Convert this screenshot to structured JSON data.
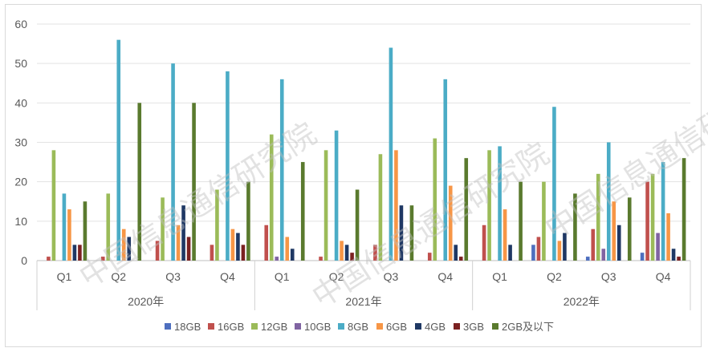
{
  "chart_data": {
    "type": "bar",
    "ylim": [
      0,
      60
    ],
    "yticks": [
      0,
      10,
      20,
      30,
      40,
      50,
      60
    ],
    "grid": true,
    "legend_position": "bottom",
    "quarters": [
      "Q1",
      "Q2",
      "Q3",
      "Q4"
    ],
    "years": [
      "2020年",
      "2021年",
      "2022年"
    ],
    "categories": [
      "2020年 Q1",
      "2020年 Q2",
      "2020年 Q3",
      "2020年 Q4",
      "2021年 Q1",
      "2021年 Q2",
      "2021年 Q3",
      "2021年 Q4",
      "2022年 Q1",
      "2022年 Q2",
      "2022年 Q3",
      "2022年 Q4"
    ],
    "series": [
      {
        "name": "18GB",
        "color": "#4e6fbf",
        "values": [
          0,
          0,
          0,
          0,
          0,
          0,
          0,
          0,
          0,
          4,
          1,
          2
        ]
      },
      {
        "name": "16GB",
        "color": "#c0504d",
        "values": [
          1,
          1,
          5,
          4,
          9,
          1,
          4,
          2,
          9,
          6,
          8,
          20
        ]
      },
      {
        "name": "12GB",
        "color": "#9bbb59",
        "values": [
          28,
          17,
          16,
          18,
          32,
          28,
          27,
          31,
          28,
          20,
          22,
          22
        ]
      },
      {
        "name": "10GB",
        "color": "#8064a2",
        "values": [
          0,
          0,
          0,
          0,
          1,
          0,
          0,
          0,
          0,
          0,
          3,
          7
        ]
      },
      {
        "name": "8GB",
        "color": "#4bacc6",
        "values": [
          17,
          56,
          50,
          48,
          46,
          33,
          54,
          46,
          29,
          39,
          30,
          25
        ]
      },
      {
        "name": "6GB",
        "color": "#f79646",
        "values": [
          13,
          8,
          9,
          8,
          6,
          5,
          28,
          19,
          13,
          5,
          15,
          12
        ]
      },
      {
        "name": "4GB",
        "color": "#1f3864",
        "values": [
          4,
          6,
          14,
          7,
          3,
          4,
          14,
          4,
          4,
          7,
          9,
          3
        ]
      },
      {
        "name": "3GB",
        "color": "#7b2121",
        "values": [
          4,
          0,
          6,
          4,
          0,
          2,
          0,
          1,
          0,
          0,
          0,
          1
        ]
      },
      {
        "name": "2GB及以下",
        "color": "#5a7a2e",
        "values": [
          15,
          40,
          40,
          20,
          25,
          18,
          14,
          26,
          20,
          17,
          16,
          26
        ]
      }
    ]
  },
  "watermark": "中国信息通信研究院"
}
